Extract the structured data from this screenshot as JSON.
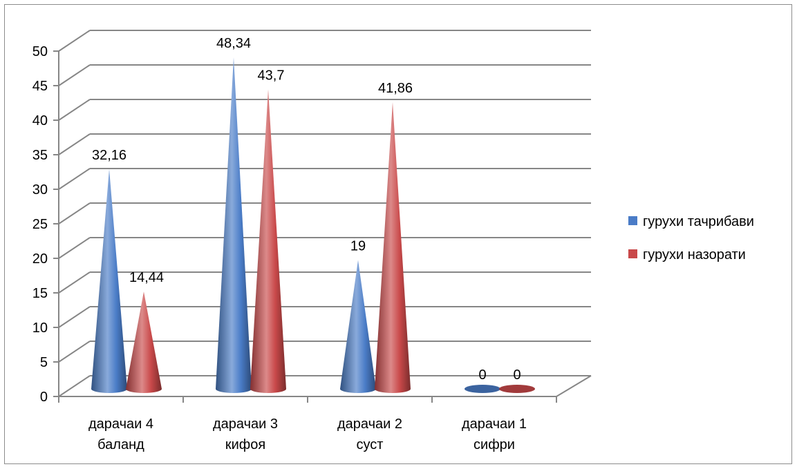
{
  "chart_data": {
    "type": "bar",
    "bar_shape": "cone",
    "three_d": true,
    "categories": [
      "дарачаи 4\nбаланд",
      "дарачаи 3\nкифоя",
      "дарачаи 2\nсуст",
      "дарачаи 1\nсифри"
    ],
    "series": [
      {
        "name": "гурухи тачрибави",
        "values": [
          32.16,
          48.34,
          19,
          0
        ],
        "labels": [
          "32,16",
          "48,34",
          "19",
          "0"
        ],
        "color": "#4a7cc7"
      },
      {
        "name": "гурухи назорати",
        "values": [
          14.44,
          43.7,
          41.86,
          0
        ],
        "labels": [
          "14,44",
          "43,7",
          "41,86",
          "0"
        ],
        "color": "#c9494a"
      }
    ],
    "ylim": [
      0,
      50
    ],
    "yticks": [
      "0",
      "5",
      "10",
      "15",
      "20",
      "25",
      "30",
      "35",
      "40",
      "45",
      "50"
    ],
    "grid": true,
    "legend": "right"
  }
}
